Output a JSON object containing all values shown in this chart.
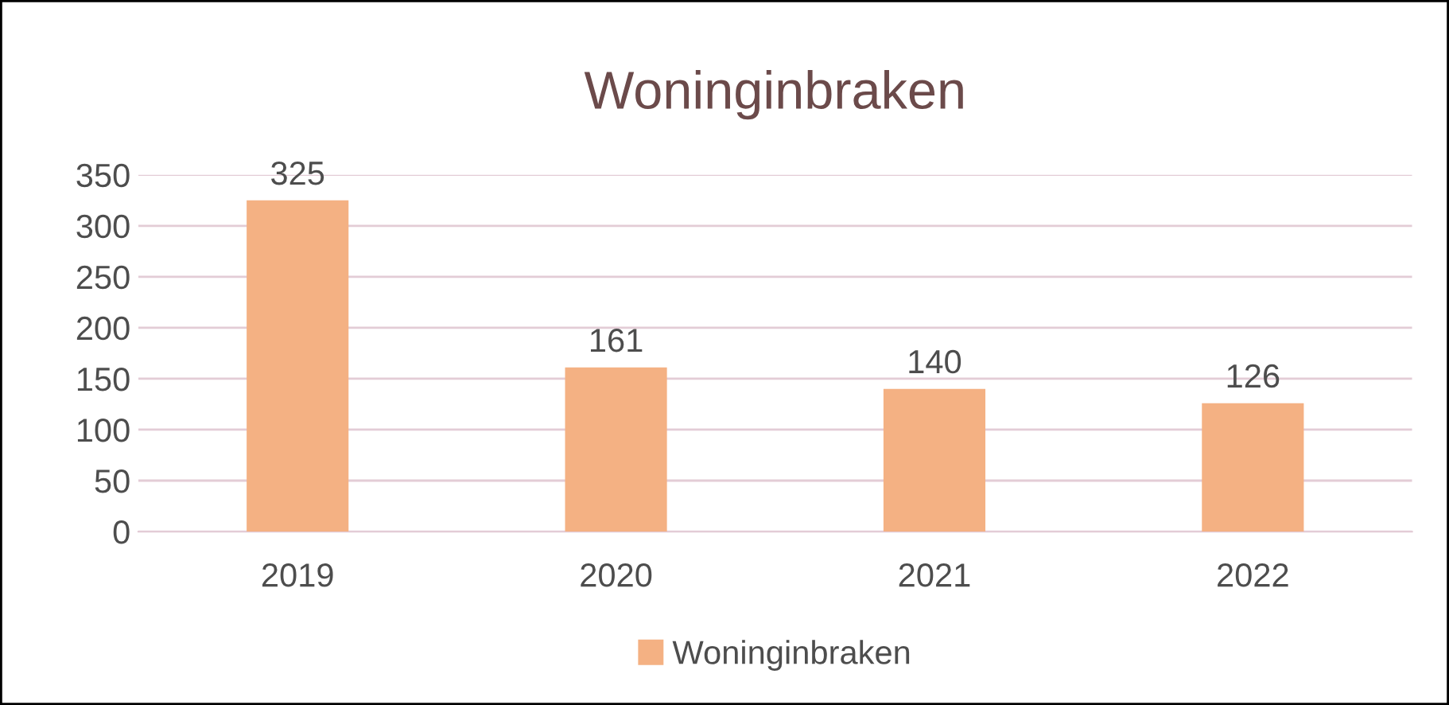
{
  "chart_data": {
    "type": "bar",
    "title": "Woninginbraken",
    "categories": [
      "2019",
      "2020",
      "2021",
      "2022"
    ],
    "series": [
      {
        "name": "Woninginbraken",
        "color": "#f4b183",
        "values": [
          325,
          161,
          140,
          126
        ]
      }
    ],
    "ylim": [
      0,
      350
    ],
    "yticks": [
      0,
      50,
      100,
      150,
      200,
      250,
      300,
      350
    ],
    "grid": "y",
    "legend": "bottom",
    "data_labels": true
  }
}
